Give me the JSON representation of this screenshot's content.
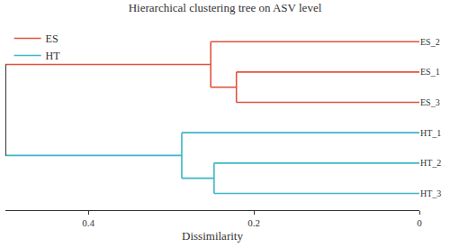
{
  "chart_data": {
    "type": "dendrogram",
    "title": "Hierarchical clustering tree on ASV level",
    "x_label": "Dissimilarity",
    "xlim": [
      0.5,
      0
    ],
    "xticks": [
      0.4,
      0.2,
      0
    ],
    "legend": "top-left",
    "series": [
      {
        "name": "ES",
        "color": "#e0533d"
      },
      {
        "name": "HT",
        "color": "#3cb6c8"
      }
    ],
    "tree": {
      "height": 0.5,
      "color": "#000000",
      "children": [
        {
          "series": "ES",
          "height": 0.252,
          "children": [
            "ES_2",
            {
              "height": 0.221,
              "children": [
                "ES_1",
                "ES_3"
              ]
            }
          ]
        },
        {
          "series": "HT",
          "height": 0.287,
          "children": [
            "HT_1",
            {
              "height": 0.248,
              "children": [
                "HT_2",
                "HT_3"
              ]
            }
          ]
        }
      ]
    }
  }
}
